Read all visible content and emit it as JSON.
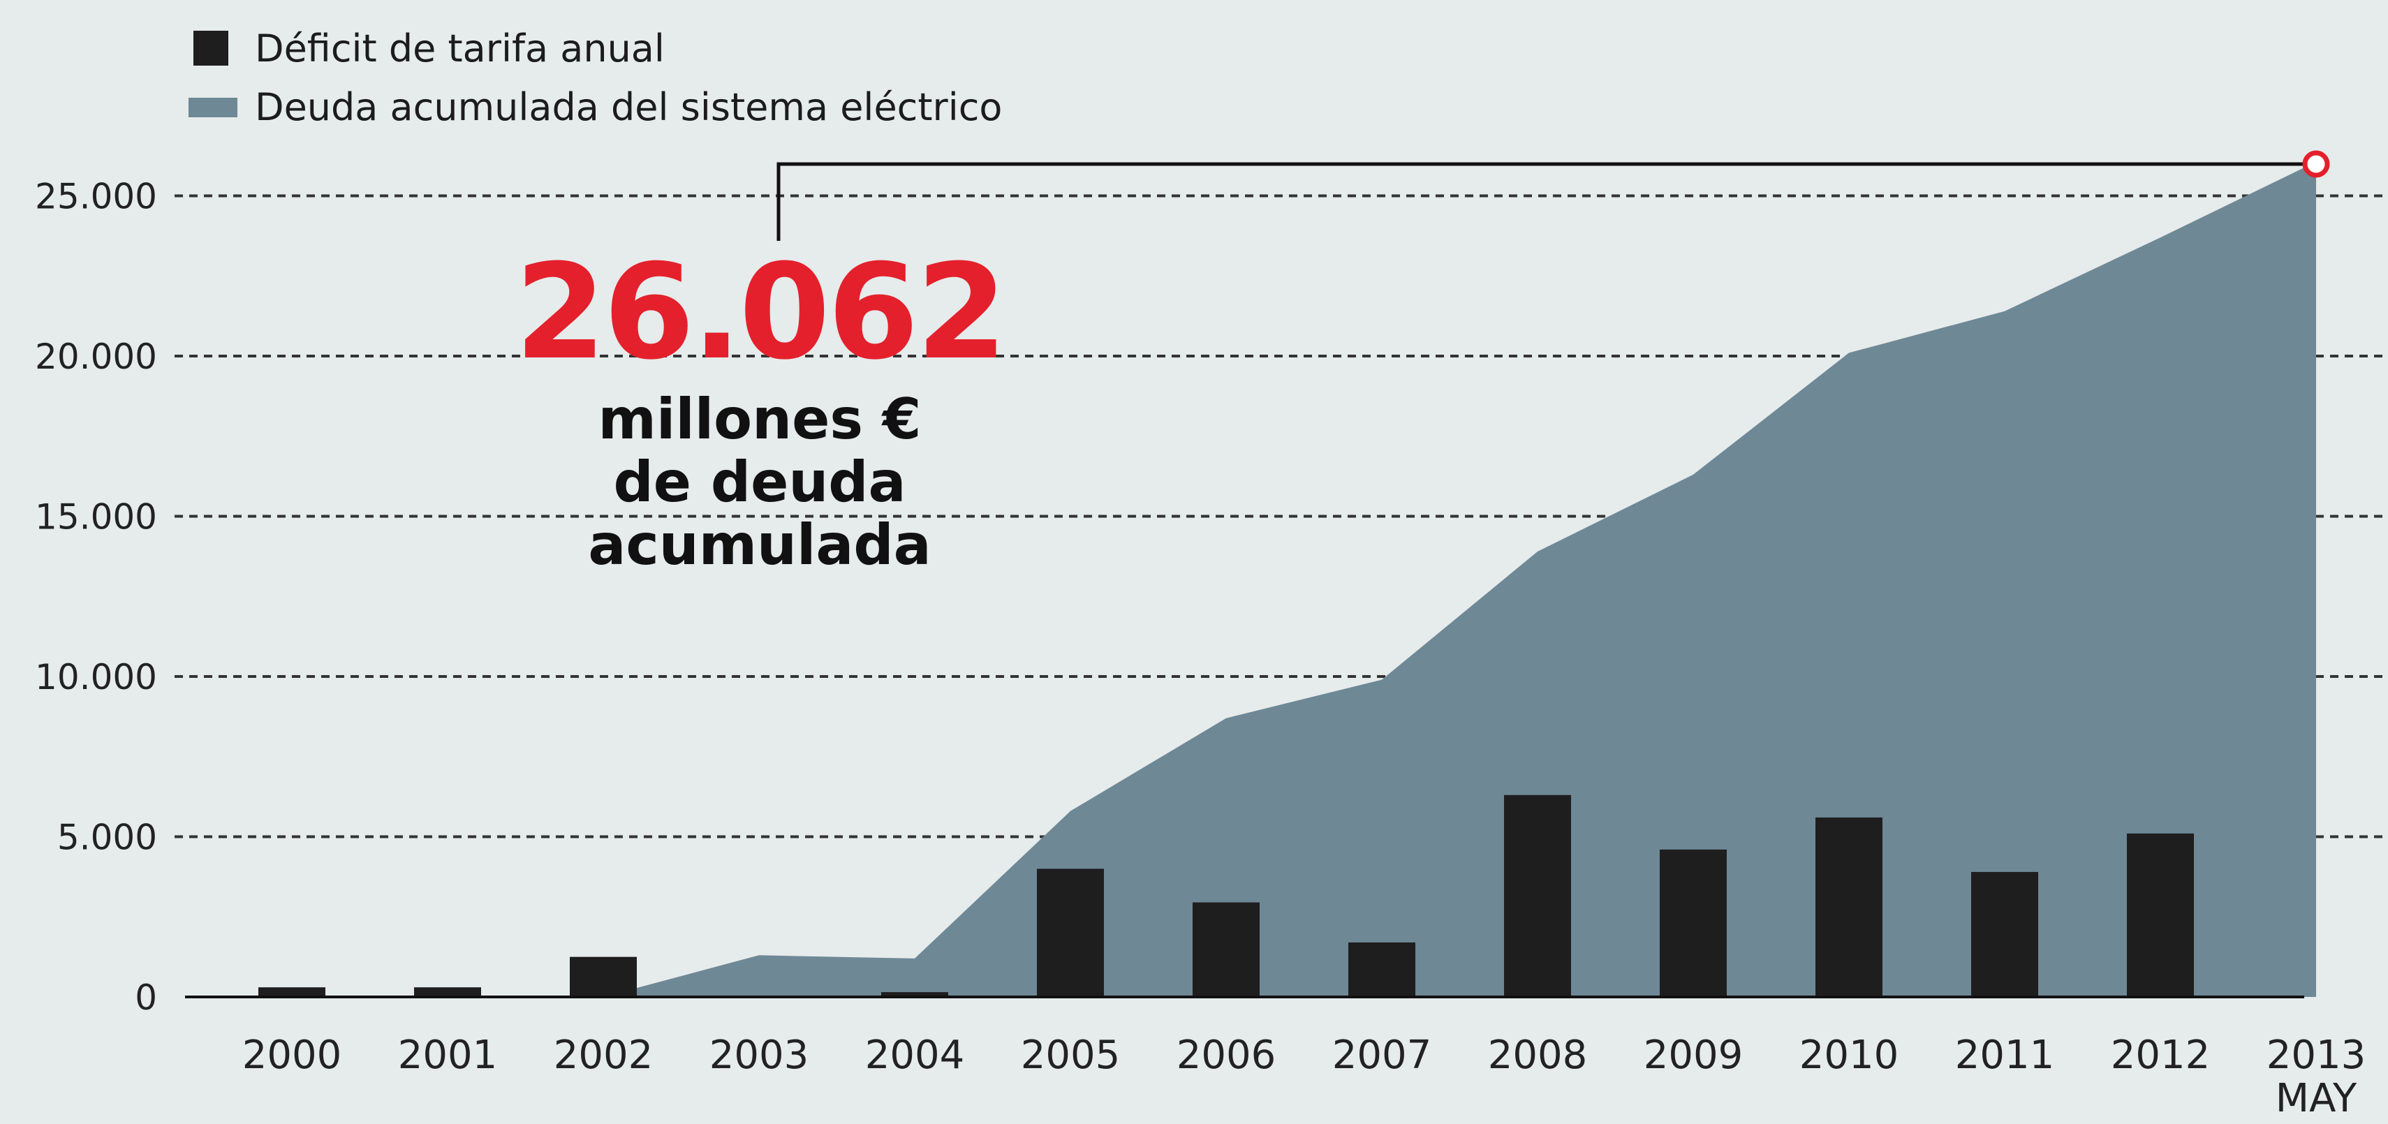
{
  "chart_data": {
    "type": "bar",
    "x_labels": [
      "2000",
      "2001",
      "2002",
      "2003",
      "2004",
      "2005",
      "2006",
      "2007",
      "2008",
      "2009",
      "2010",
      "2011",
      "2012",
      "2013"
    ],
    "x_sublabels": [
      "",
      "",
      "",
      "",
      "",
      "",
      "",
      "",
      "",
      "",
      "",
      "",
      "",
      "MAY"
    ],
    "ylim": [
      0,
      27000
    ],
    "y_ticks": [
      0,
      5000,
      10000,
      15000,
      20000,
      25000
    ],
    "y_tick_labels": [
      "0",
      "5.000",
      "10.000",
      "15.000",
      "20.000",
      "25.000"
    ],
    "grid": "dashed horizontal",
    "legend_position": "top-left",
    "series": [
      {
        "name": "Deuda acumulada del sistema eléctrico",
        "type": "area",
        "color": "#6e8896",
        "values": [
          null,
          null,
          0,
          1300,
          1200,
          5800,
          8700,
          9900,
          13900,
          16300,
          20100,
          21400,
          23700,
          26062
        ]
      },
      {
        "name": "Déficit de tarifa anual",
        "type": "bar",
        "color": "#1e1e1e",
        "values": [
          300,
          300,
          1250,
          0,
          150,
          4000,
          2950,
          1700,
          6300,
          4600,
          5600,
          3900,
          5100,
          null
        ]
      }
    ],
    "annotation": {
      "value_text": "26.062",
      "lines": [
        "millones €",
        "de deuda",
        "acumulada"
      ],
      "target_index": 13,
      "target_value": 26062,
      "marker_color": "#e4202c"
    }
  }
}
